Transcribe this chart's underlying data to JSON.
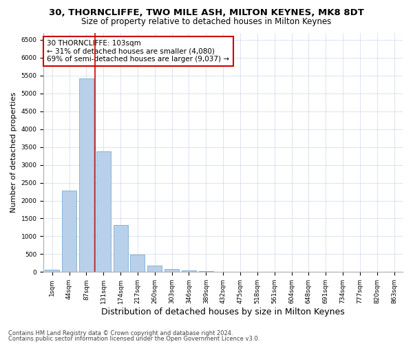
{
  "title": "30, THORNCLIFFE, TWO MILE ASH, MILTON KEYNES, MK8 8DT",
  "subtitle": "Size of property relative to detached houses in Milton Keynes",
  "xlabel": "Distribution of detached houses by size in Milton Keynes",
  "ylabel": "Number of detached properties",
  "bar_labels": [
    "1sqm",
    "44sqm",
    "87sqm",
    "131sqm",
    "174sqm",
    "217sqm",
    "260sqm",
    "303sqm",
    "346sqm",
    "389sqm",
    "432sqm",
    "475sqm",
    "518sqm",
    "561sqm",
    "604sqm",
    "648sqm",
    "691sqm",
    "734sqm",
    "777sqm",
    "820sqm",
    "863sqm"
  ],
  "bar_values": [
    70,
    2280,
    5420,
    3380,
    1310,
    480,
    185,
    80,
    50,
    30,
    0,
    0,
    0,
    0,
    0,
    0,
    0,
    0,
    0,
    0,
    0
  ],
  "bar_color": "#b8d0ea",
  "bar_edgecolor": "#7aadd4",
  "vline_x": 2.5,
  "vline_color": "#cc0000",
  "annotation_text": "30 THORNCLIFFE: 103sqm\n← 31% of detached houses are smaller (4,080)\n69% of semi-detached houses are larger (9,037) →",
  "annotation_box_color": "#ffffff",
  "annotation_box_edgecolor": "#cc0000",
  "ylim": [
    0,
    6700
  ],
  "yticks": [
    0,
    500,
    1000,
    1500,
    2000,
    2500,
    3000,
    3500,
    4000,
    4500,
    5000,
    5500,
    6000,
    6500
  ],
  "footer1": "Contains HM Land Registry data © Crown copyright and database right 2024.",
  "footer2": "Contains public sector information licensed under the Open Government Licence v3.0.",
  "bg_color": "#ffffff",
  "grid_color": "#ccd8ec",
  "title_fontsize": 9.5,
  "subtitle_fontsize": 8.5,
  "ylabel_fontsize": 8,
  "xlabel_fontsize": 9,
  "annot_fontsize": 7.5,
  "tick_fontsize": 6.5,
  "footer_fontsize": 6
}
